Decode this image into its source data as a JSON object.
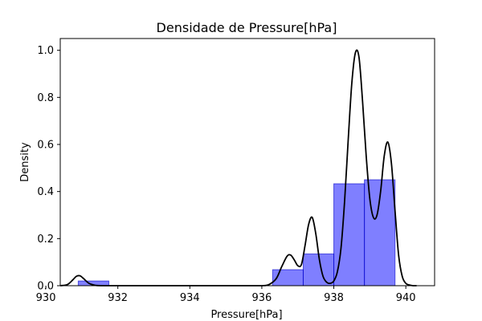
{
  "chart_data": {
    "type": "bar",
    "title": "Densidade de Pressure[hPa]",
    "xlabel": "Pressure[hPa]",
    "ylabel": "Density",
    "xlim": [
      930.4,
      940.8
    ],
    "ylim": [
      0,
      1.05
    ],
    "xticks": [
      930,
      932,
      934,
      936,
      938,
      940
    ],
    "yticks": [
      0.0,
      0.2,
      0.4,
      0.6,
      0.8,
      1.0
    ],
    "xtick_labels": [
      "930",
      "932",
      "934",
      "936",
      "938",
      "940"
    ],
    "ytick_labels": [
      "0.0",
      "0.2",
      "0.4",
      "0.6",
      "0.8",
      "1.0"
    ],
    "grid": false,
    "histogram": {
      "color": "#0000ff",
      "bins": [
        {
          "x0": 930.9,
          "x1": 931.75,
          "density": 0.02
        },
        {
          "x0": 936.3,
          "x1": 937.15,
          "density": 0.068
        },
        {
          "x0": 937.15,
          "x1": 938.0,
          "density": 0.135
        },
        {
          "x0": 938.0,
          "x1": 938.85,
          "density": 0.433
        },
        {
          "x0": 938.85,
          "x1": 939.7,
          "density": 0.45
        }
      ]
    },
    "kde": {
      "color": "#000000",
      "x": [
        930.4,
        930.6,
        930.75,
        930.85,
        930.95,
        931.05,
        931.2,
        931.4,
        931.7,
        932.5,
        933.5,
        934.5,
        935.5,
        936.0,
        936.2,
        936.4,
        936.55,
        936.7,
        936.8,
        936.9,
        937.0,
        937.1,
        937.2,
        937.3,
        937.4,
        937.5,
        937.6,
        937.7,
        937.8,
        937.9,
        938.0,
        938.1,
        938.2,
        938.3,
        938.4,
        938.5,
        938.6,
        938.7,
        938.8,
        938.9,
        939.0,
        939.1,
        939.2,
        939.3,
        939.4,
        939.5,
        939.6,
        939.7,
        939.8,
        939.9,
        940.0,
        940.1,
        940.2,
        940.3
      ],
      "y": [
        0.0,
        0.005,
        0.025,
        0.04,
        0.042,
        0.03,
        0.01,
        0.001,
        0.0,
        0.0,
        0.0,
        0.0,
        0.0,
        0.0,
        0.005,
        0.03,
        0.08,
        0.125,
        0.13,
        0.11,
        0.085,
        0.09,
        0.17,
        0.26,
        0.29,
        0.22,
        0.11,
        0.04,
        0.015,
        0.01,
        0.02,
        0.06,
        0.16,
        0.36,
        0.62,
        0.86,
        0.99,
        0.97,
        0.78,
        0.55,
        0.37,
        0.29,
        0.3,
        0.4,
        0.55,
        0.61,
        0.52,
        0.32,
        0.13,
        0.04,
        0.01,
        0.003,
        0.0,
        0.0
      ]
    }
  }
}
